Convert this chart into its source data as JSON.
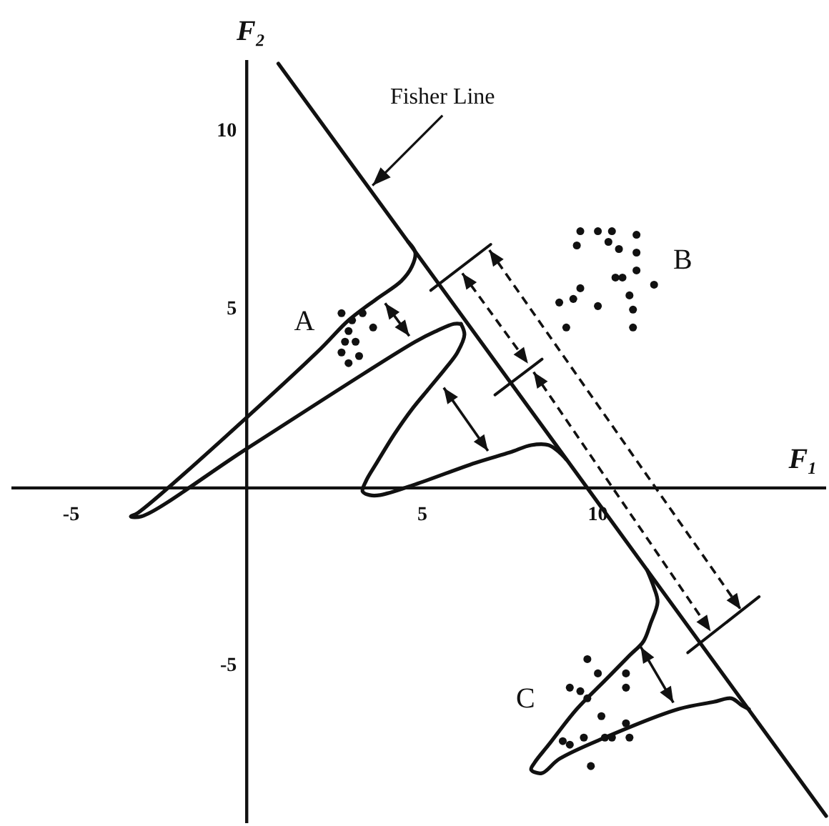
{
  "chart_data": {
    "type": "scatter",
    "xlabel": "F₁",
    "ylabel": "F₂",
    "xlim": [
      -6.7,
      16.5
    ],
    "ylim": [
      -9.4,
      12
    ],
    "xticks": [
      -5,
      5,
      10
    ],
    "yticks": [
      -5,
      5,
      10
    ],
    "annotations": [
      {
        "text": "Fisher Line",
        "x": 3.5,
        "y": 8.4
      }
    ],
    "series": [
      {
        "type": "line",
        "color": "#111111",
        "x": [
          0.9,
          16.5
        ],
        "values": [
          11.9,
          -9.2
        ]
      },
      {
        "type": "line",
        "color": "#111111",
        "x": [
          4.6,
          4.8,
          4.7,
          4.4,
          3.7,
          2.9,
          2.0,
          -3.1,
          -3.3,
          -3.0,
          0.0,
          4.8,
          5.4,
          5.9,
          6.1
        ],
        "values": [
          6.9,
          6.6,
          6.2,
          5.8,
          5.3,
          4.7,
          3.8,
          -0.7,
          -0.8,
          -0.8,
          1.1,
          4.1,
          4.4,
          4.6,
          4.6
        ]
      },
      {
        "type": "line",
        "color": "#111111",
        "x": [
          6.1,
          6.2,
          6.0,
          5.7,
          5.2,
          4.7,
          4.2,
          3.7,
          3.4,
          3.3,
          3.5,
          3.8,
          4.8,
          6.5,
          7.5,
          8.1,
          8.6,
          8.9,
          9.1
        ],
        "values": [
          4.6,
          4.3,
          3.8,
          3.4,
          2.8,
          2.2,
          1.5,
          0.7,
          0.2,
          -0.1,
          -0.2,
          -0.2,
          0.1,
          0.7,
          1.0,
          1.2,
          1.2,
          1.0,
          0.8
        ]
      },
      {
        "type": "line",
        "color": "#111111",
        "x": [
          11.4,
          11.6,
          11.7,
          11.5,
          11.3,
          10.9,
          10.2,
          9.4,
          8.6,
          8.2,
          8.1,
          8.4,
          8.9,
          10.2,
          12.3,
          13.3,
          13.8,
          14.1,
          14.3
        ],
        "values": [
          -2.3,
          -2.8,
          -3.2,
          -3.8,
          -4.3,
          -4.7,
          -5.4,
          -6.2,
          -7.2,
          -7.7,
          -7.9,
          -8.0,
          -7.6,
          -7.0,
          -6.2,
          -6.0,
          -5.9,
          -6.1,
          -6.2
        ]
      },
      {
        "name": "A",
        "color": "#111111",
        "marker": "circle",
        "x": [
          2.7,
          3.3,
          3.6,
          2.9,
          2.8,
          3.1,
          2.7,
          3.2,
          2.9,
          3.0
        ],
        "values": [
          4.9,
          4.9,
          4.5,
          4.4,
          4.1,
          4.1,
          3.8,
          3.7,
          3.5,
          4.7
        ]
      },
      {
        "name": "B",
        "color": "#111111",
        "marker": "circle",
        "x": [
          9.5,
          9.4,
          10.0,
          10.4,
          10.3,
          10.6,
          11.1,
          11.1,
          10.5,
          10.7,
          11.1,
          11.6,
          9.5,
          9.3,
          8.9,
          10.0,
          10.9,
          11.0,
          9.1,
          11.0
        ],
        "values": [
          7.2,
          6.8,
          7.2,
          7.2,
          6.9,
          6.7,
          7.1,
          6.6,
          5.9,
          5.9,
          6.1,
          5.7,
          5.6,
          5.3,
          5.2,
          5.1,
          5.4,
          5.0,
          4.5,
          4.5
        ]
      },
      {
        "name": "C",
        "color": "#111111",
        "marker": "circle",
        "x": [
          9.7,
          10.0,
          10.8,
          10.8,
          9.2,
          9.5,
          9.7,
          10.1,
          10.8,
          9.0,
          9.2,
          9.6,
          10.2,
          10.4,
          10.9,
          9.8
        ],
        "values": [
          -4.8,
          -5.2,
          -5.2,
          -5.6,
          -5.6,
          -5.7,
          -5.9,
          -6.4,
          -6.6,
          -7.1,
          -7.2,
          -7.0,
          -7.0,
          -7.0,
          -7.0,
          -7.8
        ]
      }
    ]
  }
}
